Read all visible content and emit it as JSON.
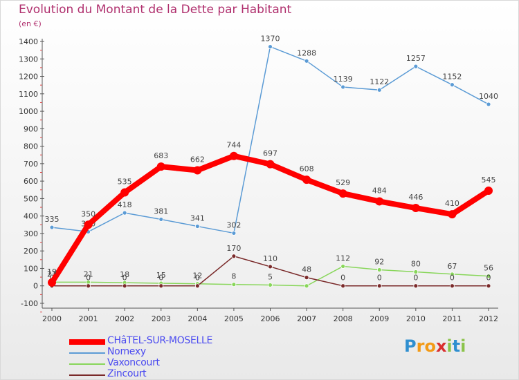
{
  "title": "Evolution du Montant de la Dette par Habitant",
  "subtitle": "(en €)",
  "logo": {
    "letters": [
      {
        "ch": "P",
        "color": "#2f8fd0"
      },
      {
        "ch": "r",
        "color": "#f39a16"
      },
      {
        "ch": "o",
        "color": "#f39a16"
      },
      {
        "ch": "x",
        "color": "#d92f2f"
      },
      {
        "ch": "i",
        "color": "#8bc34a"
      },
      {
        "ch": "t",
        "color": "#2f8fd0"
      },
      {
        "ch": "i",
        "color": "#8bc34a"
      }
    ]
  },
  "chart_data": {
    "type": "line",
    "categories": [
      "2000",
      "2001",
      "2002",
      "2003",
      "2004",
      "2005",
      "2006",
      "2007",
      "2008",
      "2009",
      "2010",
      "2011",
      "2012"
    ],
    "ylim": [
      -100,
      1400
    ],
    "yticks": [
      "-100",
      "0",
      "100",
      "200",
      "300",
      "400",
      "500",
      "600",
      "700",
      "800",
      "900",
      "1000",
      "1100",
      "1200",
      "1300",
      "1400"
    ],
    "grid": false,
    "legend_position": "bottom-left",
    "series": [
      {
        "name": "Nomexy",
        "color": "#5b9bd5",
        "width": 1.5,
        "marker": 3,
        "values": [
          335,
          310,
          418,
          381,
          341,
          302,
          1370,
          1288,
          1139,
          1122,
          1257,
          1152,
          1040
        ],
        "labels": [
          "335",
          "310",
          "418",
          "381",
          "341",
          "302",
          "1370",
          "1288",
          "1139",
          "1122",
          "1257",
          "1152",
          "1040"
        ]
      },
      {
        "name": "Vaxoncourt",
        "color": "#88d65a",
        "width": 1.5,
        "marker": 3,
        "values": [
          21,
          21,
          18,
          15,
          12,
          8,
          5,
          0,
          112,
          92,
          80,
          67,
          56
        ],
        "labels": [
          "21",
          "21",
          "18",
          "15",
          "12",
          "8",
          "5",
          "",
          "112",
          "92",
          "80",
          "67",
          "56"
        ]
      },
      {
        "name": "Zincourt",
        "color": "#7a2a2a",
        "width": 1.5,
        "marker": 3,
        "values": [
          0,
          0,
          0,
          0,
          0,
          170,
          110,
          48,
          0,
          0,
          0,
          0,
          0
        ],
        "labels": [
          "0",
          "0",
          "0",
          "0",
          "0",
          "170",
          "110",
          "48",
          "0",
          "0",
          "0",
          "0",
          "0"
        ]
      },
      {
        "name": "CHâTEL-SUR-MOSELLE",
        "color": "#ff0000",
        "width": 8,
        "marker": 6,
        "values": [
          19,
          350,
          535,
          683,
          662,
          744,
          697,
          608,
          529,
          484,
          446,
          410,
          545
        ],
        "labels": [
          "19",
          "350",
          "535",
          "683",
          "662",
          "744",
          "697",
          "608",
          "529",
          "484",
          "446",
          "410",
          "545"
        ]
      }
    ]
  }
}
